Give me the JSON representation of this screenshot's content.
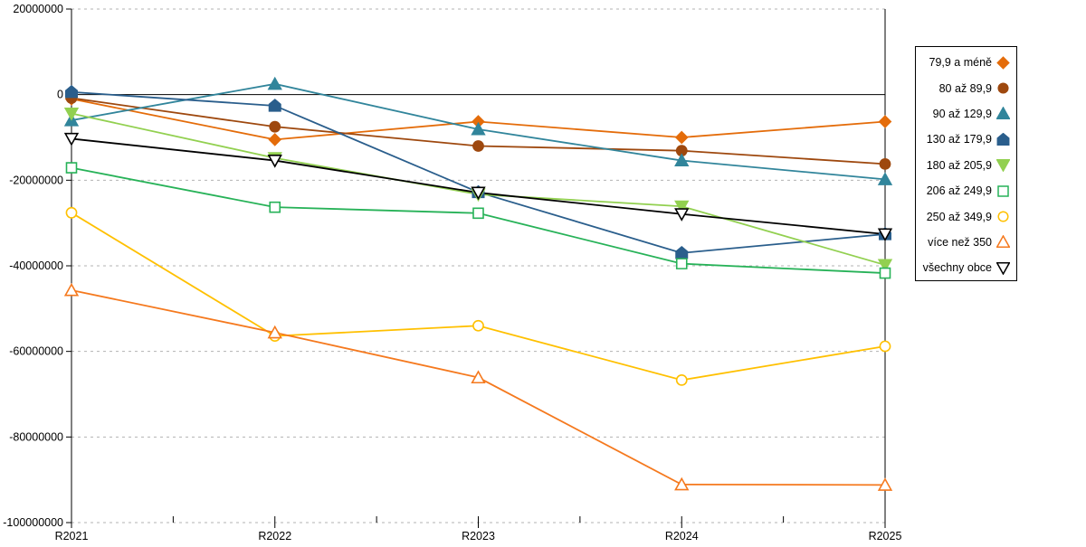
{
  "chart_data": {
    "type": "line",
    "title": "",
    "xlabel": "",
    "ylabel": "",
    "categories": [
      "R2021",
      "R2022",
      "R2023",
      "R2024",
      "R2025"
    ],
    "y_axis": {
      "min": -100000000,
      "max": 20000000,
      "step": 20000000,
      "tick_labels": [
        "20000000",
        "0",
        "-20000000",
        "-40000000",
        "-60000000",
        "-80000000",
        "-100000000"
      ]
    },
    "grid": "horizontal dashed gridlines every 20000000, solid black line at 0",
    "legend_position": "right",
    "series": [
      {
        "name": "79,9 a méně",
        "color": "#E46C0A",
        "marker": "diamond",
        "fill": "solid",
        "values": [
          -1000000,
          -10500000,
          -6300000,
          -10000000,
          -6300000
        ]
      },
      {
        "name": "80 až 89,9",
        "color": "#9E480E",
        "marker": "circle",
        "fill": "solid",
        "values": [
          -800000,
          -7500000,
          -12000000,
          -13100000,
          -16200000
        ]
      },
      {
        "name": "90 až 129,9",
        "color": "#31859B",
        "marker": "triangle-up",
        "fill": "solid",
        "values": [
          -6000000,
          2500000,
          -8100000,
          -15400000,
          -19800000
        ]
      },
      {
        "name": "130 až 179,9",
        "color": "#2A5E8C",
        "marker": "pentagon",
        "fill": "solid",
        "values": [
          600000,
          -2600000,
          -22800000,
          -37000000,
          -32600000
        ]
      },
      {
        "name": "180 až 205,9",
        "color": "#92D050",
        "marker": "triangle-down",
        "fill": "solid",
        "values": [
          -4400000,
          -14800000,
          -23300000,
          -26100000,
          -39800000
        ]
      },
      {
        "name": "206 až 249,9",
        "color": "#27B258",
        "marker": "square",
        "fill": "open",
        "values": [
          -17100000,
          -26300000,
          -27700000,
          -39500000,
          -41700000
        ]
      },
      {
        "name": "250 až 349,9",
        "color": "#FFC000",
        "marker": "circle",
        "fill": "open",
        "values": [
          -27600000,
          -56400000,
          -54000000,
          -66700000,
          -58800000
        ]
      },
      {
        "name": "více než 350",
        "color": "#F5791E",
        "marker": "triangle-up",
        "fill": "open",
        "values": [
          -45700000,
          -55600000,
          -66100000,
          -91100000,
          -91200000
        ]
      },
      {
        "name": "všechny obce",
        "color": "#000000",
        "marker": "triangle-down",
        "fill": "open",
        "values": [
          -10300000,
          -15400000,
          -22900000,
          -27900000,
          -32600000
        ]
      }
    ]
  }
}
